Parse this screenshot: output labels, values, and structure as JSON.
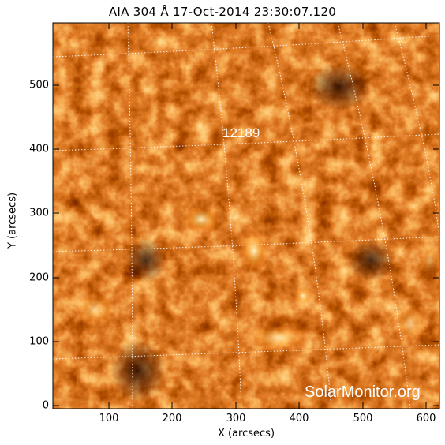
{
  "figure": {
    "title": "AIA 304 Å 17-Oct-2014 23:30:07.120",
    "xlabel": "X (arcsecs)",
    "ylabel": "Y (arcsecs)",
    "xticks": [
      "100",
      "200",
      "300",
      "400",
      "500",
      "600"
    ],
    "yticks": [
      "0",
      "100",
      "200",
      "300",
      "400",
      "500"
    ],
    "active_region": "12189",
    "watermark": "SolarMonitor.org",
    "colors": {
      "background": "#ffffff",
      "image_dark": "#1a0300",
      "image_mid": "#8a1c00",
      "image_bright": "#ffd27a",
      "grid": "#ffffff"
    }
  }
}
